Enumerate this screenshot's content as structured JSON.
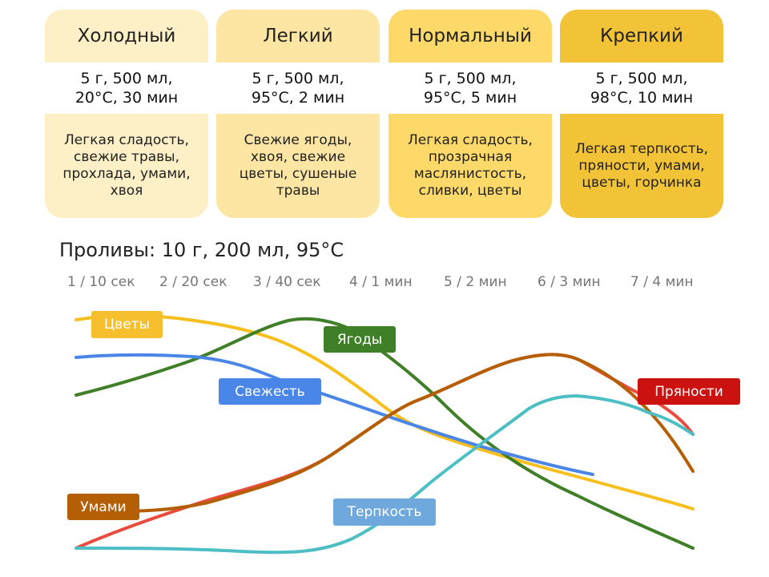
{
  "cards": [
    {
      "title": "Холодный",
      "params": [
        "5 г, 500 мл,",
        "20°С, 30 мин"
      ],
      "notes": [
        "Легкая сладость,",
        "свежие травы,",
        "прохлада, умами,",
        "хвоя"
      ],
      "head_color": "#fdefc6",
      "body_color": "#fdefc6"
    },
    {
      "title": "Легкий",
      "params": [
        "5 г, 500 мл,",
        "95°С, 2 мин"
      ],
      "notes": [
        "Свежие ягоды,",
        "хвоя, свежие",
        "цветы, сушеные",
        "травы"
      ],
      "head_color": "#fde6a3",
      "body_color": "#fde6a3"
    },
    {
      "title": "Нормальный",
      "params": [
        "5 г, 500 мл,",
        "95°С, 5 мин"
      ],
      "notes": [
        "Легкая сладость,",
        "прозрачная",
        "маслянистость,",
        "сливки, цветы"
      ],
      "head_color": "#fcd968",
      "body_color": "#fcd968"
    },
    {
      "title": "Крепкий",
      "params": [
        "5 г, 500 мл,",
        "98°С, 10 мин"
      ],
      "notes": [
        "Легкая терпкость,",
        "пряности, умами,",
        "цветы, горчинка"
      ],
      "head_color": "#f2c336",
      "body_color": "#f2c336"
    }
  ],
  "infusions": {
    "heading": "Проливы: 10 г, 200 мл, 95°С",
    "steps": [
      "1 / 10 сек",
      "2 / 20 сек",
      "3 / 40 сек",
      "4 / 1 мин",
      "5 / 2 мин",
      "6 / 3 мин",
      "7 / 4 мин"
    ]
  },
  "flavors": [
    {
      "label": "Цветы",
      "color": "#f7bf1e",
      "tag_color": "#f5bf2e"
    },
    {
      "label": "Ягоды",
      "color": "#3f7f27",
      "tag_color": "#3f7f27"
    },
    {
      "label": "Свежесть",
      "color": "#4a86e8",
      "tag_color": "#4a86e8"
    },
    {
      "label": "Пряности",
      "color": "#e94b3c",
      "tag_color": "#cc1111"
    },
    {
      "label": "Умами",
      "color": "#b45f06",
      "tag_color": "#b45f06"
    },
    {
      "label": "Терпкость",
      "color": "#4dbfc4",
      "tag_color": "#6fa8dc"
    }
  ]
}
